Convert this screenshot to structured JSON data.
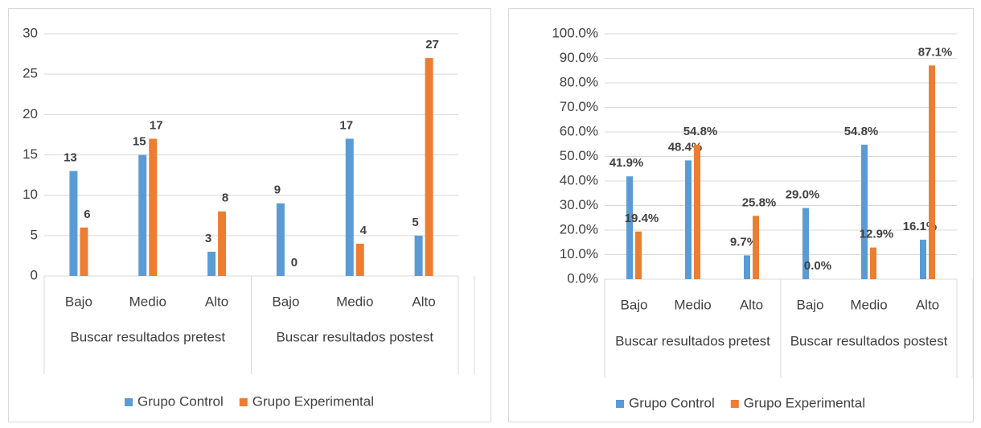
{
  "chart_data": [
    {
      "type": "bar",
      "categories": [
        "Bajo",
        "Medio",
        "Alto",
        "Bajo",
        "Medio",
        "Alto"
      ],
      "groups": [
        "Buscar resultados pretest",
        "Buscar resultados postest"
      ],
      "series": [
        {
          "name": "Grupo Control",
          "color": "#5b9bd5",
          "values": [
            13,
            15,
            3,
            9,
            17,
            5
          ]
        },
        {
          "name": "Grupo Experimental",
          "color": "#ed7d31",
          "values": [
            6,
            17,
            8,
            0,
            4,
            27
          ]
        }
      ],
      "ylim": [
        0,
        30
      ],
      "yticks": [
        0,
        5,
        10,
        15,
        20,
        25,
        30
      ],
      "grid": true,
      "legend": "bottom"
    },
    {
      "type": "bar",
      "categories": [
        "Bajo",
        "Medio",
        "Alto",
        "Bajo",
        "Medio",
        "Alto"
      ],
      "groups": [
        "Buscar resultados pretest",
        "Buscar resultados postest"
      ],
      "series": [
        {
          "name": "Grupo Control",
          "color": "#5b9bd5",
          "values": [
            41.9,
            48.4,
            9.7,
            29.0,
            54.8,
            16.1
          ],
          "value_labels": [
            "41.9%",
            "48.4%",
            "9.7%",
            "29.0%",
            "54.8%",
            "16.1%"
          ]
        },
        {
          "name": "Grupo Experimental",
          "color": "#ed7d31",
          "values": [
            19.4,
            54.8,
            25.8,
            0.0,
            12.9,
            87.1
          ],
          "value_labels": [
            "19.4%",
            "54.8%",
            "25.8%",
            "0.0%",
            "12.9%",
            "87.1%"
          ]
        }
      ],
      "ylim": [
        0,
        100
      ],
      "yticks": [
        {
          "value": 0,
          "label": "0.0%"
        },
        {
          "value": 10,
          "label": "10.0%"
        },
        {
          "value": 20,
          "label": "20.0%"
        },
        {
          "value": 30,
          "label": "30.0%"
        },
        {
          "value": 40,
          "label": "40.0%"
        },
        {
          "value": 50,
          "label": "50.0%"
        },
        {
          "value": 60,
          "label": "60.0%"
        },
        {
          "value": 70,
          "label": "70.0%"
        },
        {
          "value": 80,
          "label": "80.0%"
        },
        {
          "value": 90,
          "label": "90.0%"
        },
        {
          "value": 100,
          "label": "100.0%"
        }
      ],
      "grid": true,
      "legend": "bottom"
    }
  ]
}
